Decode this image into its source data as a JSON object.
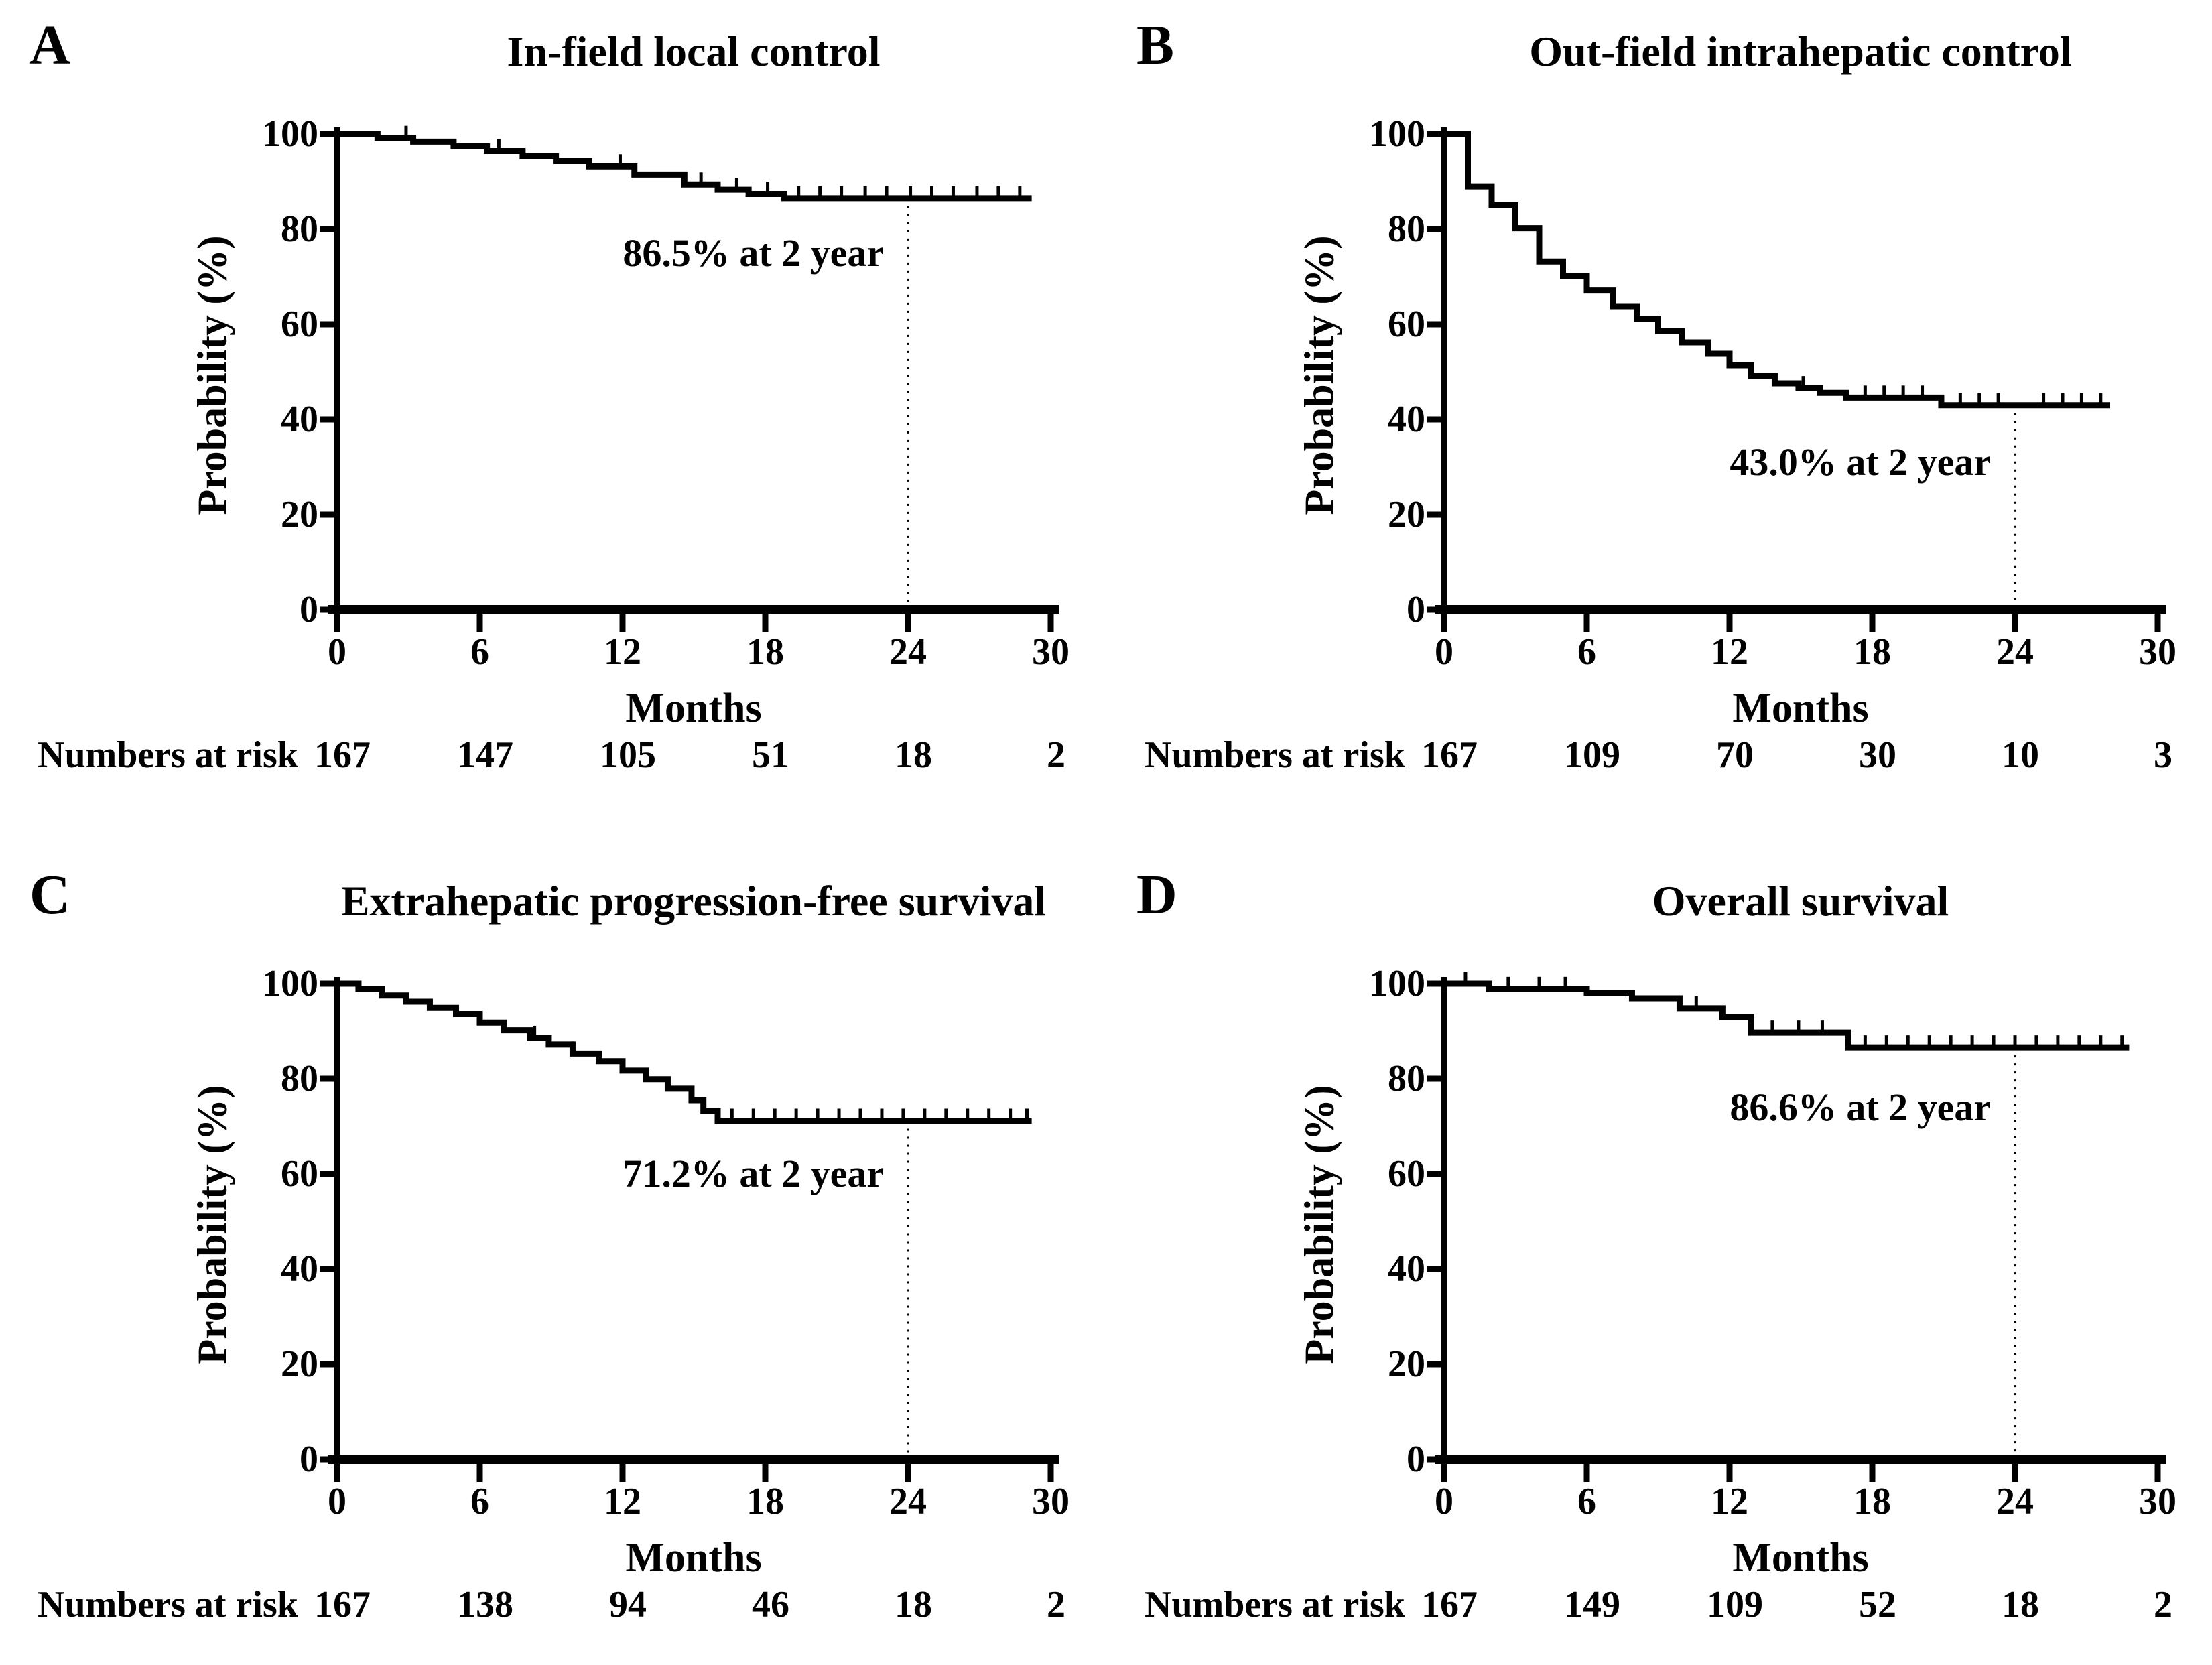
{
  "chart_data": [
    {
      "type": "line",
      "km_step": true,
      "panel_label": "A",
      "title": "In-field local control",
      "xlabel": "Months",
      "ylabel": "Probability (%)",
      "xlim": [
        0,
        30
      ],
      "ylim": [
        0,
        100
      ],
      "xticks": [
        0,
        6,
        12,
        18,
        24,
        30
      ],
      "yticks": [
        0,
        20,
        40,
        60,
        80,
        100
      ],
      "grid": false,
      "legend": "none",
      "annotation": {
        "text": "86.5% at 2 year",
        "x": 17.5,
        "y": 75
      },
      "reference_line_x": 24,
      "curve_color": "#000000",
      "curve_end": 29.2,
      "steps": [
        [
          0,
          100
        ],
        [
          1.7,
          99.2
        ],
        [
          3.2,
          98.4
        ],
        [
          4.9,
          97.4
        ],
        [
          6.3,
          96.4
        ],
        [
          7.8,
          95.3
        ],
        [
          9.2,
          94.3
        ],
        [
          10.6,
          93.2
        ],
        [
          12.5,
          91.5
        ],
        [
          14.6,
          89.4
        ],
        [
          16,
          88.3
        ],
        [
          17.3,
          87.4
        ],
        [
          18.8,
          86.5
        ]
      ],
      "censor_ticks": [
        2.9,
        6.8,
        11.9,
        15.3,
        16.8,
        18.1,
        19.4,
        20.3,
        21.2,
        22.2,
        23.1,
        24.1,
        25,
        25.9,
        26.9,
        27.8,
        28.7
      ],
      "numbers_at_risk": {
        "label": "Numbers at risk",
        "values": [
          "167",
          "147",
          "105",
          "51",
          "18",
          "2"
        ]
      }
    },
    {
      "type": "line",
      "km_step": true,
      "panel_label": "B",
      "title": "Out-field intrahepatic control",
      "xlabel": "Months",
      "ylabel": "Probability (%)",
      "xlim": [
        0,
        30
      ],
      "ylim": [
        0,
        100
      ],
      "xticks": [
        0,
        6,
        12,
        18,
        24,
        30
      ],
      "yticks": [
        0,
        20,
        40,
        60,
        80,
        100
      ],
      "grid": false,
      "legend": "none",
      "annotation": {
        "text": "43.0% at 2 year",
        "x": 17.5,
        "y": 31
      },
      "reference_line_x": 24,
      "curve_color": "#000000",
      "curve_end": 28,
      "steps": [
        [
          0,
          100
        ],
        [
          1,
          89
        ],
        [
          2,
          85
        ],
        [
          3,
          80.2
        ],
        [
          4,
          73.2
        ],
        [
          5,
          70.2
        ],
        [
          6,
          67.1
        ],
        [
          7.1,
          63.8
        ],
        [
          8.1,
          61.2
        ],
        [
          9,
          58.6
        ],
        [
          10,
          56.2
        ],
        [
          11.1,
          53.8
        ],
        [
          12,
          51.4
        ],
        [
          12.9,
          49.2
        ],
        [
          13.9,
          47.6
        ],
        [
          14.9,
          46.6
        ],
        [
          15.8,
          45.6
        ],
        [
          16.9,
          44.6
        ],
        [
          20.9,
          43
        ]
      ],
      "censor_ticks": [
        15.1,
        17.7,
        18.5,
        19.3,
        20.1,
        21.7,
        22.5,
        23.3,
        25.2,
        26,
        26.8,
        27.6
      ],
      "numbers_at_risk": {
        "label": "Numbers at risk",
        "values": [
          "167",
          "109",
          "70",
          "30",
          "10",
          "3"
        ]
      }
    },
    {
      "type": "line",
      "km_step": true,
      "panel_label": "C",
      "title": "Extrahepatic progression-free survival",
      "xlabel": "Months",
      "ylabel": "Probability (%)",
      "xlim": [
        0,
        30
      ],
      "ylim": [
        0,
        100
      ],
      "xticks": [
        0,
        6,
        12,
        18,
        24,
        30
      ],
      "yticks": [
        0,
        20,
        40,
        60,
        80,
        100
      ],
      "grid": false,
      "legend": "none",
      "annotation": {
        "text": "71.2% at 2 year",
        "x": 17.5,
        "y": 60
      },
      "reference_line_x": 24,
      "curve_color": "#000000",
      "curve_end": 29.2,
      "steps": [
        [
          0,
          100
        ],
        [
          0.9,
          98.8
        ],
        [
          1.9,
          97.5
        ],
        [
          2.9,
          96.2
        ],
        [
          3.9,
          94.9
        ],
        [
          5,
          93.6
        ],
        [
          6,
          91.8
        ],
        [
          7,
          90.2
        ],
        [
          8.1,
          88.6
        ],
        [
          8.9,
          87.2
        ],
        [
          9.9,
          85.3
        ],
        [
          11,
          83.7
        ],
        [
          12,
          81.7
        ],
        [
          13,
          79.9
        ],
        [
          13.9,
          77.9
        ],
        [
          14.9,
          75.5
        ],
        [
          15.4,
          73.2
        ],
        [
          16,
          71.2
        ]
      ],
      "censor_ticks": [
        8.3,
        9.9,
        16.6,
        17.5,
        18.4,
        19.3,
        20.2,
        21.1,
        22,
        22.9,
        23.8,
        24.7,
        25.6,
        26.5,
        27.4,
        28.3,
        29
      ],
      "numbers_at_risk": {
        "label": "Numbers at risk",
        "values": [
          "167",
          "138",
          "94",
          "46",
          "18",
          "2"
        ]
      }
    },
    {
      "type": "line",
      "km_step": true,
      "panel_label": "D",
      "title": "Overall survival",
      "xlabel": "Months",
      "ylabel": "Probability (%)",
      "xlim": [
        0,
        30
      ],
      "ylim": [
        0,
        100
      ],
      "xticks": [
        0,
        6,
        12,
        18,
        24,
        30
      ],
      "yticks": [
        0,
        20,
        40,
        60,
        80,
        100
      ],
      "grid": false,
      "legend": "none",
      "annotation": {
        "text": "86.6% at 2 year",
        "x": 17.5,
        "y": 74
      },
      "reference_line_x": 24,
      "curve_color": "#000000",
      "curve_end": 28.8,
      "steps": [
        [
          0,
          100
        ],
        [
          1.9,
          98.9
        ],
        [
          6,
          98.1
        ],
        [
          7.9,
          96.9
        ],
        [
          9.9,
          94.8
        ],
        [
          11.7,
          92.9
        ],
        [
          12.9,
          89.7
        ],
        [
          17,
          86.6
        ]
      ],
      "censor_ticks": [
        0.9,
        2.7,
        4,
        5.1,
        10.6,
        13.8,
        14.9,
        15.9,
        17.7,
        18.6,
        19.5,
        20.4,
        21.3,
        22.2,
        23.1,
        24,
        24.9,
        25.8,
        26.7,
        27.6,
        28.5
      ],
      "numbers_at_risk": {
        "label": "Numbers at risk",
        "values": [
          "167",
          "149",
          "109",
          "52",
          "18",
          "2"
        ]
      }
    }
  ]
}
